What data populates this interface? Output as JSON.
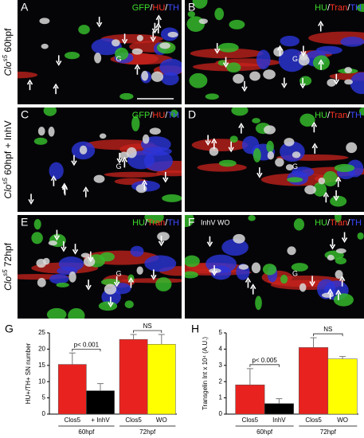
{
  "panels": [
    {
      "letter": "A",
      "stain": [
        "GFP",
        "/",
        "HU",
        "/",
        "TH"
      ],
      "marker": "G"
    },
    {
      "letter": "B",
      "stain": [
        "HU",
        "/",
        "Tran",
        "/",
        "TH"
      ],
      "marker": "G"
    },
    {
      "letter": "C",
      "stain": [
        "GFP",
        "/",
        "HU",
        "/",
        "TH"
      ],
      "marker": "G"
    },
    {
      "letter": "D",
      "stain": [
        "HU",
        "/",
        "Tran",
        "/",
        "TH"
      ],
      "marker": "G"
    },
    {
      "letter": "E",
      "stain": [
        "HU",
        "/",
        "Tran",
        "/",
        "TH"
      ],
      "marker": "G"
    },
    {
      "letter": "F",
      "stain": [
        "HU",
        "/",
        "Tran",
        "/",
        "TH"
      ],
      "marker": "G",
      "treatment": "InhV WO"
    }
  ],
  "row_labels": [
    {
      "main": "Clo",
      "sup": "s5",
      "rest": " 60hpf"
    },
    {
      "main": "Clo",
      "sup": "s5",
      "rest": " 60hpf + InhV"
    },
    {
      "main": "Clo",
      "sup": "s5",
      "rest": " 72hpf"
    }
  ],
  "chart_data": [
    {
      "type": "bar",
      "panel": "G",
      "ylabel": "HU+/TH+ SN number",
      "categories": [
        "Clos5",
        "+ InhV",
        "Clos5",
        "WO"
      ],
      "groups": [
        "60hpf",
        "72hpf"
      ],
      "values": [
        15.3,
        7.2,
        23,
        21.5
      ],
      "errors": [
        3.5,
        2.2,
        1.5,
        3
      ],
      "colors": [
        "#e8231f",
        "#000000",
        "#e8231f",
        "#ffff00"
      ],
      "ylim": [
        0,
        25
      ],
      "yticks": [
        0,
        5,
        10,
        15,
        20,
        25
      ],
      "annotations": [
        "p< 0.001",
        "NS"
      ]
    },
    {
      "type": "bar",
      "panel": "H",
      "ylabel": "Transgelin Int x 10⁴ (A.U.)",
      "categories": [
        "Clos5",
        "InhV",
        "Clos5",
        "WO"
      ],
      "groups": [
        "60hpf",
        "72hpf"
      ],
      "values": [
        1.8,
        0.65,
        4.1,
        3.4
      ],
      "errors": [
        1.0,
        0.3,
        0.6,
        0.15
      ],
      "colors": [
        "#e8231f",
        "#000000",
        "#e8231f",
        "#ffff00"
      ],
      "ylim": [
        0,
        5
      ],
      "yticks": [
        0,
        1,
        2,
        3,
        4,
        5
      ],
      "annotations": [
        "p< 0.005",
        "NS"
      ]
    }
  ]
}
